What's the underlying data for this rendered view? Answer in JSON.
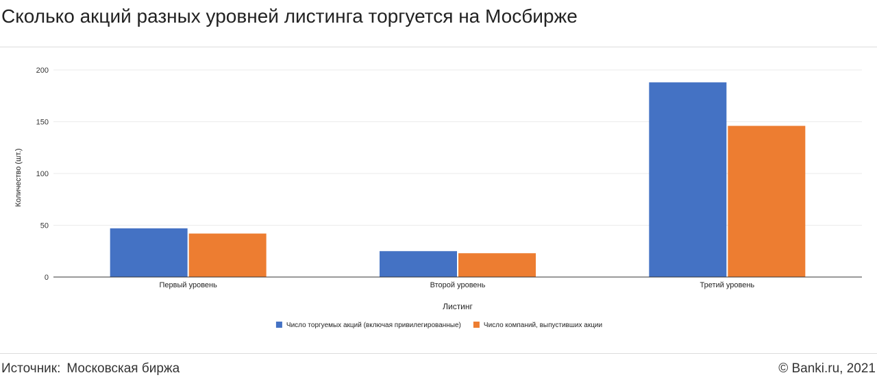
{
  "header": {
    "title": "Сколько акций разных уровней листинга торгуется на Мосбирже"
  },
  "footer": {
    "source_label": "Источник:",
    "source_value": "Московская биржа",
    "copyright": "© Banki.ru, 2021"
  },
  "chart_data": {
    "type": "bar",
    "title": "",
    "xlabel": "Листинг",
    "ylabel": "Количество (шт.)",
    "ylim": [
      0,
      200
    ],
    "yticks": [
      0,
      50,
      100,
      150,
      200
    ],
    "grid": true,
    "legend_position": "bottom",
    "categories": [
      "Первый уровень",
      "Второй уровень",
      "Третий уровень"
    ],
    "series": [
      {
        "name": "Число торгуемых акций (включая привилегированные)",
        "color": "#4472c4",
        "values": [
          47,
          25,
          188
        ]
      },
      {
        "name": "Число компаний, выпустивших акции",
        "color": "#ed7d31",
        "values": [
          42,
          23,
          146
        ]
      }
    ]
  }
}
